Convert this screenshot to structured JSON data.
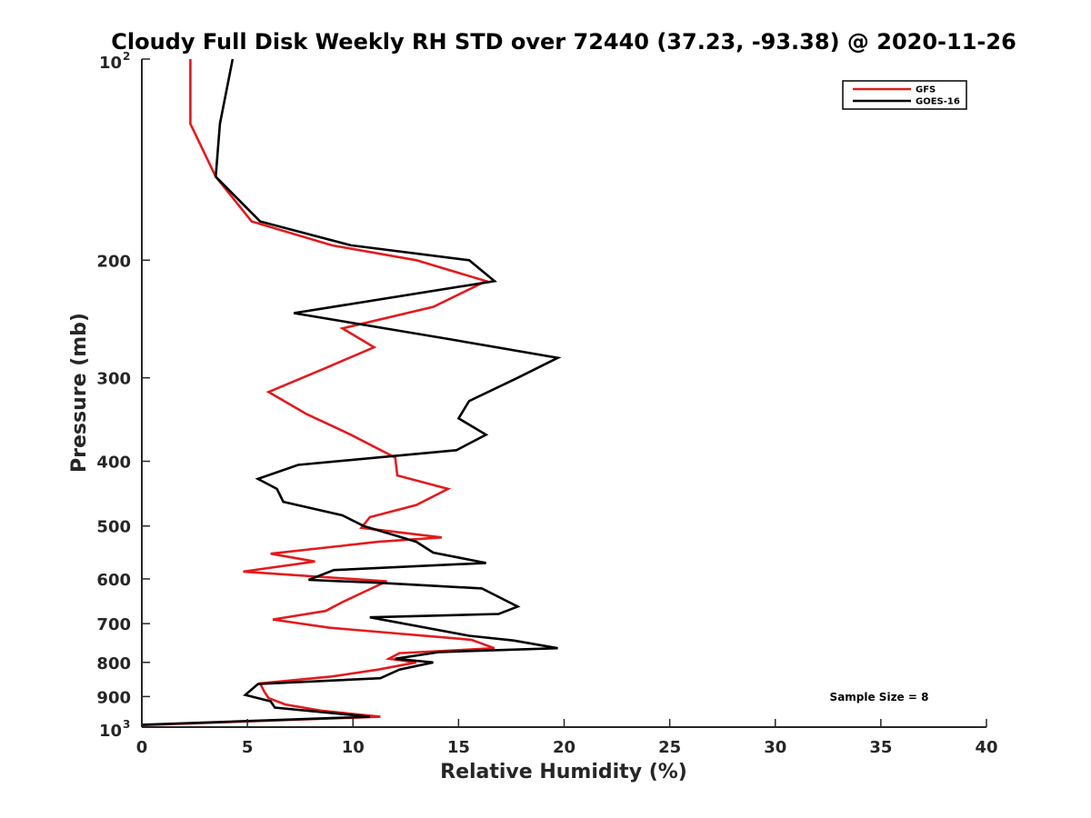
{
  "chart_data": {
    "type": "line",
    "title": "Cloudy Full Disk Weekly RH STD over 72440 (37.23, -93.38) @ 2020-11-26",
    "xlabel": "Relative Humidity (%)",
    "ylabel": "Pressure (mb)",
    "xlim": [
      0,
      40
    ],
    "ylim": [
      1000,
      100
    ],
    "yscale": "log",
    "grid": false,
    "legend_position": "top-right",
    "x_ticks": [
      "0",
      "5",
      "10",
      "15",
      "20",
      "25",
      "30",
      "35",
      "40"
    ],
    "y_ticks": [
      {
        "value": 200,
        "label": "200"
      },
      {
        "value": 300,
        "label": "300"
      },
      {
        "value": 400,
        "label": "400"
      },
      {
        "value": 500,
        "label": "500"
      },
      {
        "value": 600,
        "label": "600"
      },
      {
        "value": 700,
        "label": "700"
      },
      {
        "value": 800,
        "label": "800"
      },
      {
        "value": 900,
        "label": "900"
      }
    ],
    "y_power_ticks": [
      {
        "value": 100,
        "base": "10",
        "exp": "2"
      },
      {
        "value": 1000,
        "base": "10",
        "exp": "3"
      }
    ],
    "annotation": "Sample Size = 8",
    "series": [
      {
        "name": "GFS",
        "color": "#e31a1c",
        "points": [
          [
            2.3,
            100
          ],
          [
            2.3,
            125
          ],
          [
            3.5,
            150
          ],
          [
            5.2,
            175
          ],
          [
            9.0,
            190
          ],
          [
            13.0,
            200
          ],
          [
            16.3,
            215
          ],
          [
            13.8,
            235
          ],
          [
            9.5,
            253
          ],
          [
            11.0,
            270
          ],
          [
            8.7,
            290
          ],
          [
            6.0,
            315
          ],
          [
            7.8,
            340
          ],
          [
            9.9,
            365
          ],
          [
            12.0,
            395
          ],
          [
            12.1,
            420
          ],
          [
            14.5,
            440
          ],
          [
            13.0,
            465
          ],
          [
            10.8,
            485
          ],
          [
            10.4,
            503
          ],
          [
            14.2,
            520
          ],
          [
            11.2,
            528
          ],
          [
            6.1,
            550
          ],
          [
            8.2,
            565
          ],
          [
            4.8,
            585
          ],
          [
            11.6,
            605
          ],
          [
            10.5,
            628
          ],
          [
            9.5,
            650
          ],
          [
            8.7,
            670
          ],
          [
            6.2,
            690
          ],
          [
            8.9,
            710
          ],
          [
            15.6,
            740
          ],
          [
            16.7,
            762
          ],
          [
            12.2,
            775
          ],
          [
            11.7,
            790
          ],
          [
            13.0,
            800
          ],
          [
            11.2,
            820
          ],
          [
            9.0,
            840
          ],
          [
            5.6,
            860
          ],
          [
            5.8,
            885
          ],
          [
            6.0,
            905
          ],
          [
            6.8,
            925
          ],
          [
            8.5,
            945
          ],
          [
            11.3,
            965
          ],
          [
            0.0,
            993
          ]
        ]
      },
      {
        "name": "GOES-16",
        "color": "#000000",
        "points": [
          [
            4.3,
            100
          ],
          [
            3.7,
            125
          ],
          [
            3.5,
            150
          ],
          [
            5.6,
            175
          ],
          [
            9.9,
            190
          ],
          [
            15.5,
            200
          ],
          [
            16.7,
            215
          ],
          [
            7.2,
            240
          ],
          [
            14.4,
            262
          ],
          [
            19.7,
            280
          ],
          [
            17.8,
            300
          ],
          [
            15.5,
            325
          ],
          [
            15.0,
            345
          ],
          [
            16.3,
            365
          ],
          [
            14.9,
            385
          ],
          [
            7.4,
            405
          ],
          [
            5.5,
            425
          ],
          [
            6.4,
            440
          ],
          [
            6.7,
            460
          ],
          [
            9.5,
            482
          ],
          [
            10.5,
            500
          ],
          [
            13.0,
            528
          ],
          [
            13.8,
            548
          ],
          [
            16.3,
            568
          ],
          [
            9.1,
            582
          ],
          [
            7.9,
            602
          ],
          [
            11.2,
            608
          ],
          [
            16.1,
            620
          ],
          [
            17.8,
            660
          ],
          [
            16.9,
            677
          ],
          [
            10.8,
            685
          ],
          [
            15.5,
            730
          ],
          [
            17.6,
            742
          ],
          [
            19.7,
            762
          ],
          [
            14.1,
            772
          ],
          [
            12.0,
            790
          ],
          [
            13.8,
            800
          ],
          [
            12.2,
            820
          ],
          [
            11.3,
            845
          ],
          [
            5.5,
            862
          ],
          [
            4.9,
            895
          ],
          [
            6.1,
            915
          ],
          [
            6.3,
            935
          ],
          [
            10.8,
            965
          ],
          [
            0.0,
            992
          ]
        ]
      }
    ]
  }
}
